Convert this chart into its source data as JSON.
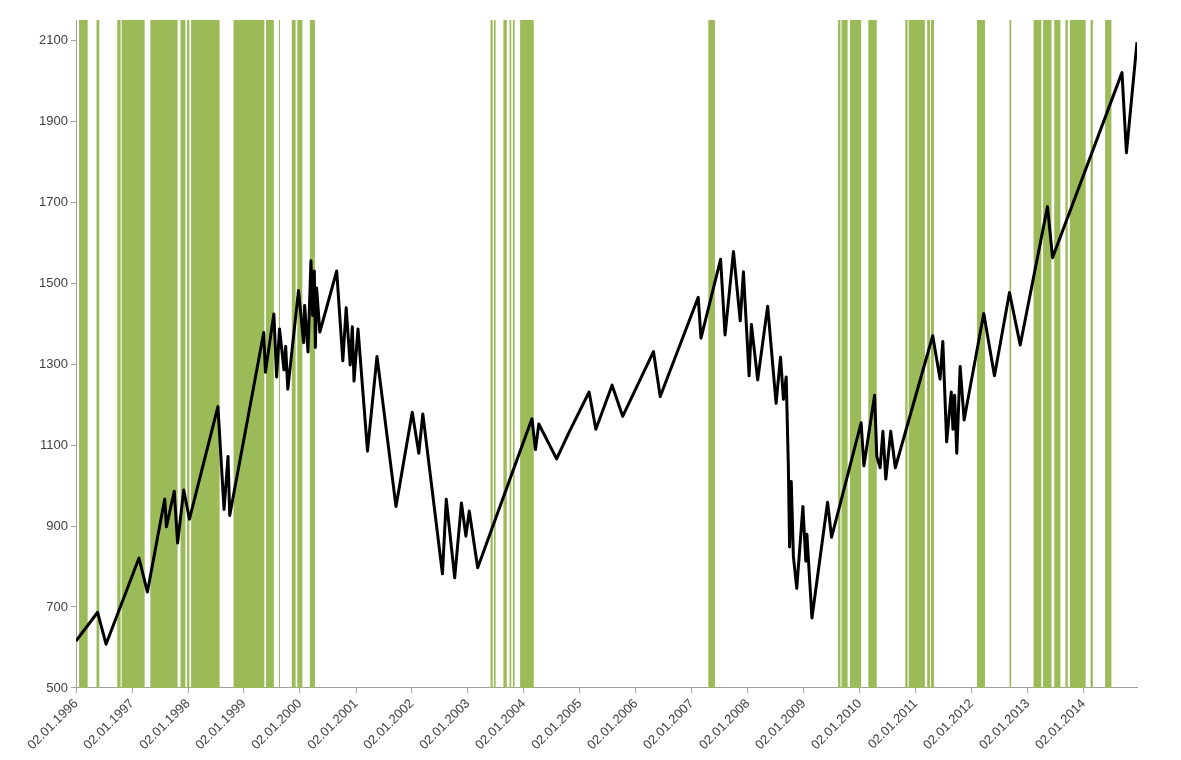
{
  "chart_data": {
    "type": "line",
    "color": "#000000",
    "marker": "none",
    "x": [
      "1996-01-02",
      "1996-05-22",
      "1996-07-16",
      "1997-02-16",
      "1997-04-12",
      "1997-08-03",
      "1997-08-14",
      "1997-10-04",
      "1997-10-26",
      "1997-12-05",
      "1998-01-11",
      "1998-07-16",
      "1998-08-25",
      "1998-09-20",
      "1998-10-01",
      "1999-05-11",
      "1999-05-22",
      "1999-07-16",
      "1999-08-03",
      "1999-08-22",
      "1999-09-20",
      "1999-10-01",
      "1999-10-15",
      "1999-12-24",
      "2000-01-26",
      "2000-02-02",
      "2000-02-24",
      "2000-03-14",
      "2000-03-25",
      "2000-04-05",
      "2000-04-12",
      "2000-04-20",
      "2000-05-11",
      "2000-08-29",
      "2000-10-08",
      "2000-10-30",
      "2000-11-25",
      "2000-12-09",
      "2000-12-20",
      "2001-01-15",
      "2001-03-18",
      "2001-05-19",
      "2001-09-20",
      "2002-01-04",
      "2002-02-16",
      "2002-03-14",
      "2002-07-20",
      "2002-08-14",
      "2002-10-08",
      "2002-11-21",
      "2002-12-20",
      "2003-01-11",
      "2003-03-07",
      "2004-02-24",
      "2004-03-18",
      "2004-04-09",
      "2004-08-03",
      "2004-10-26",
      "2005-03-03",
      "2005-04-16",
      "2005-07-31",
      "2005-10-08",
      "2006-04-27",
      "2006-06-10",
      "2007-02-13",
      "2007-03-03",
      "2007-07-09",
      "2007-08-07",
      "2007-10-01",
      "2007-11-14",
      "2007-12-05",
      "2008-01-11",
      "2008-01-26",
      "2008-03-07",
      "2008-05-11",
      "2008-07-05",
      "2008-08-03",
      "2008-08-22",
      "2008-09-09",
      "2008-09-23",
      "2008-10-01",
      "2008-10-12",
      "2008-10-26",
      "2008-11-17",
      "2008-12-27",
      "2009-01-15",
      "2009-01-22",
      "2009-02-24",
      "2009-06-06",
      "2009-07-02",
      "2010-01-11",
      "2010-01-29",
      "2010-04-09",
      "2010-04-23",
      "2010-05-15",
      "2010-06-02",
      "2010-06-21",
      "2010-07-23",
      "2010-08-22",
      "2011-04-23",
      "2011-06-10",
      "2011-06-28",
      "2011-07-23",
      "2011-08-22",
      "2011-09-02",
      "2011-09-13",
      "2011-09-27",
      "2011-10-19",
      "2011-11-14",
      "2012-03-21",
      "2012-05-30",
      "2012-09-05",
      "2012-11-14",
      "2013-05-11",
      "2013-06-13",
      "2014-09-09",
      "2014-10-08",
      "2014-12-16"
    ],
    "values": [
      616,
      687,
      608,
      821,
      737,
      967,
      898,
      986,
      858,
      989,
      917,
      1195,
      941,
      1072,
      926,
      1378,
      1280,
      1424,
      1268,
      1387,
      1286,
      1344,
      1238,
      1482,
      1353,
      1445,
      1330,
      1555,
      1420,
      1530,
      1341,
      1488,
      1379,
      1530,
      1308,
      1439,
      1298,
      1392,
      1258,
      1387,
      1085,
      1319,
      948,
      1181,
      1080,
      1177,
      782,
      966,
      772,
      957,
      875,
      937,
      797,
      1165,
      1089,
      1152,
      1066,
      1134,
      1231,
      1139,
      1248,
      1171,
      1331,
      1220,
      1465,
      1364,
      1559,
      1372,
      1578,
      1407,
      1528,
      1271,
      1398,
      1261,
      1443,
      1203,
      1317,
      1213,
      1268,
      1049,
      848,
      1010,
      825,
      746,
      948,
      813,
      880,
      673,
      959,
      872,
      1155,
      1049,
      1223,
      1072,
      1044,
      1134,
      1016,
      1134,
      1044,
      1370,
      1263,
      1356,
      1108,
      1231,
      1139,
      1223,
      1080,
      1294,
      1162,
      1425,
      1271,
      1477,
      1347,
      1689,
      1563,
      2020,
      1822,
      2095
    ],
    "xlim": [
      "1996-01-02",
      "2014-12-16"
    ],
    "xticks": [
      {
        "value": "1996-01-02",
        "label": "02.01.1996"
      },
      {
        "value": "1997-01-02",
        "label": "02.01.1997"
      },
      {
        "value": "1998-01-02",
        "label": "02.01.1998"
      },
      {
        "value": "1999-01-02",
        "label": "02.01.1999"
      },
      {
        "value": "2000-01-02",
        "label": "02.01.2000"
      },
      {
        "value": "2001-01-02",
        "label": "02.01.2001"
      },
      {
        "value": "2002-01-02",
        "label": "02.01.2002"
      },
      {
        "value": "2003-01-02",
        "label": "02.01.2003"
      },
      {
        "value": "2004-01-02",
        "label": "02.01.2004"
      },
      {
        "value": "2005-01-02",
        "label": "02.01.2005"
      },
      {
        "value": "2006-01-02",
        "label": "02.01.2006"
      },
      {
        "value": "2007-01-02",
        "label": "02.01.2007"
      },
      {
        "value": "2008-01-02",
        "label": "02.01.2008"
      },
      {
        "value": "2009-01-02",
        "label": "02.01.2009"
      },
      {
        "value": "2010-01-02",
        "label": "02.01.2010"
      },
      {
        "value": "2011-01-02",
        "label": "02.01.2011"
      },
      {
        "value": "2012-01-02",
        "label": "02.01.2012"
      },
      {
        "value": "2013-01-02",
        "label": "02.01.2013"
      },
      {
        "value": "2014-01-02",
        "label": "02.01.2014"
      }
    ],
    "ylim": [
      500,
      2150
    ],
    "yticks": [
      500,
      700,
      900,
      1100,
      1300,
      1500,
      1700,
      1900,
      2100
    ],
    "bands": [
      {
        "axis": "x",
        "from": "1996-01-22",
        "to": "1996-03-18",
        "color": "#9bbb59"
      },
      {
        "axis": "x",
        "from": "1996-05-15",
        "to": "1996-06-02",
        "color": "#9bbb59"
      },
      {
        "axis": "x",
        "from": "1996-09-27",
        "to": "1996-10-19",
        "color": "#9bbb59"
      },
      {
        "axis": "x",
        "from": "1996-10-26",
        "to": "1997-03-25",
        "color": "#9bbb59"
      },
      {
        "axis": "x",
        "from": "1997-05-01",
        "to": "1997-10-26",
        "color": "#9bbb59"
      },
      {
        "axis": "x",
        "from": "1997-11-14",
        "to": "1997-12-16",
        "color": "#9bbb59"
      },
      {
        "axis": "x",
        "from": "1997-12-27",
        "to": "1998-01-11",
        "color": "#9bbb59"
      },
      {
        "axis": "x",
        "from": "1998-01-22",
        "to": "1998-07-27",
        "color": "#9bbb59"
      },
      {
        "axis": "x",
        "from": "1998-10-26",
        "to": "1999-05-15",
        "color": "#9bbb59"
      },
      {
        "axis": "x",
        "from": "1999-05-26",
        "to": "1999-07-16",
        "color": "#9bbb59"
      },
      {
        "axis": "x",
        "from": "1999-08-18",
        "to": "1999-08-25",
        "color": "#9bbb59"
      },
      {
        "axis": "x",
        "from": "1999-11-10",
        "to": "1999-12-05",
        "color": "#9bbb59"
      },
      {
        "axis": "x",
        "from": "1999-12-16",
        "to": "2000-01-18",
        "color": "#9bbb59"
      },
      {
        "axis": "x",
        "from": "2000-03-07",
        "to": "2000-04-09",
        "color": "#9bbb59"
      },
      {
        "axis": "x",
        "from": "2003-05-30",
        "to": "2003-06-13",
        "color": "#9bbb59"
      },
      {
        "axis": "x",
        "from": "2003-06-21",
        "to": "2003-07-02",
        "color": "#9bbb59"
      },
      {
        "axis": "x",
        "from": "2003-08-22",
        "to": "2003-09-13",
        "color": "#9bbb59"
      },
      {
        "axis": "x",
        "from": "2003-10-01",
        "to": "2003-10-12",
        "color": "#9bbb59"
      },
      {
        "axis": "x",
        "from": "2003-10-23",
        "to": "2003-11-03",
        "color": "#9bbb59"
      },
      {
        "axis": "x",
        "from": "2003-12-09",
        "to": "2004-03-07",
        "color": "#9bbb59"
      },
      {
        "axis": "x",
        "from": "2007-04-20",
        "to": "2007-06-02",
        "color": "#9bbb59"
      },
      {
        "axis": "x",
        "from": "2009-08-14",
        "to": "2009-08-29",
        "color": "#9bbb59"
      },
      {
        "axis": "x",
        "from": "2009-09-05",
        "to": "2009-10-15",
        "color": "#9bbb59"
      },
      {
        "axis": "x",
        "from": "2009-10-30",
        "to": "2010-01-11",
        "color": "#9bbb59"
      },
      {
        "axis": "x",
        "from": "2010-02-27",
        "to": "2010-04-23",
        "color": "#9bbb59"
      },
      {
        "axis": "x",
        "from": "2010-10-26",
        "to": "2010-11-10",
        "color": "#9bbb59"
      },
      {
        "axis": "x",
        "from": "2010-11-17",
        "to": "2011-03-03",
        "color": "#9bbb59"
      },
      {
        "axis": "x",
        "from": "2011-03-18",
        "to": "2011-04-05",
        "color": "#9bbb59"
      },
      {
        "axis": "x",
        "from": "2011-04-12",
        "to": "2011-05-01",
        "color": "#9bbb59"
      },
      {
        "axis": "x",
        "from": "2012-02-06",
        "to": "2012-03-29",
        "color": "#9bbb59"
      },
      {
        "axis": "x",
        "from": "2012-09-05",
        "to": "2012-09-16",
        "color": "#9bbb59"
      },
      {
        "axis": "x",
        "from": "2013-02-09",
        "to": "2013-04-01",
        "color": "#9bbb59"
      },
      {
        "axis": "x",
        "from": "2013-04-12",
        "to": "2013-06-06",
        "color": "#9bbb59"
      },
      {
        "axis": "x",
        "from": "2013-06-24",
        "to": "2013-08-03",
        "color": "#9bbb59"
      },
      {
        "axis": "x",
        "from": "2013-09-05",
        "to": "2013-09-20",
        "color": "#9bbb59"
      },
      {
        "axis": "x",
        "from": "2013-10-04",
        "to": "2014-01-15",
        "color": "#9bbb59"
      },
      {
        "axis": "x",
        "from": "2014-02-16",
        "to": "2014-03-03",
        "color": "#9bbb59"
      },
      {
        "axis": "x",
        "from": "2014-05-22",
        "to": "2014-07-02",
        "color": "#9bbb59"
      }
    ]
  }
}
